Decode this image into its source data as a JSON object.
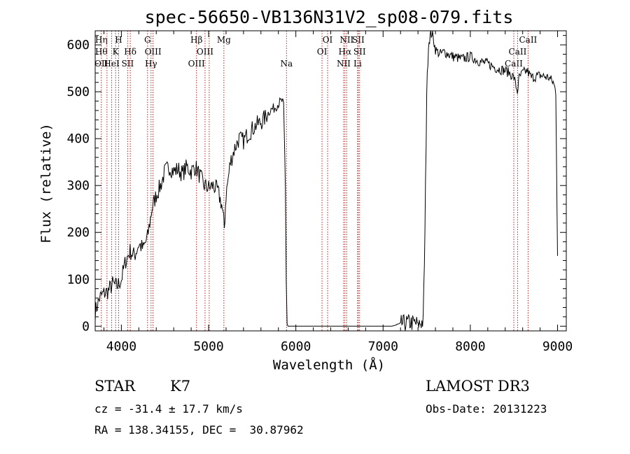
{
  "chart_data": {
    "type": "line",
    "title": "spec-56650-VB136N31V2_sp08-079.fits",
    "xlabel": "Wavelength (Å)",
    "ylabel": "Flux (relative)",
    "xlim": [
      3700,
      9100
    ],
    "ylim": [
      -10,
      630
    ],
    "xticks": [
      4000,
      5000,
      6000,
      7000,
      8000,
      9000
    ],
    "yticks": [
      0,
      100,
      200,
      300,
      400,
      500,
      600
    ],
    "series": [
      {
        "name": "flux",
        "x": [
          3700,
          3750,
          3800,
          3850,
          3900,
          3950,
          4000,
          4050,
          4100,
          4150,
          4200,
          4250,
          4300,
          4350,
          4400,
          4450,
          4500,
          4550,
          4600,
          4650,
          4700,
          4750,
          4800,
          4850,
          4900,
          4950,
          5000,
          5050,
          5100,
          5150,
          5180,
          5200,
          5250,
          5300,
          5350,
          5400,
          5450,
          5500,
          5550,
          5600,
          5650,
          5700,
          5750,
          5800,
          5840,
          5860,
          5880,
          5890,
          5900,
          5910,
          5950,
          6100,
          6300,
          6500,
          6700,
          6900,
          7100,
          7200,
          7300,
          7400,
          7460,
          7480,
          7500,
          7520,
          7540,
          7560,
          7580,
          7600,
          7650,
          7700,
          7800,
          7900,
          8000,
          8100,
          8200,
          8300,
          8400,
          8450,
          8500,
          8540,
          8560,
          8600,
          8650,
          8700,
          8800,
          8900,
          8950,
          8980,
          9000
        ],
        "y": [
          30,
          60,
          70,
          75,
          90,
          85,
          100,
          140,
          160,
          150,
          175,
          165,
          190,
          250,
          280,
          300,
          330,
          340,
          330,
          335,
          325,
          340,
          330,
          340,
          320,
          300,
          295,
          300,
          290,
          260,
          210,
          280,
          350,
          380,
          400,
          395,
          410,
          420,
          430,
          435,
          445,
          460,
          465,
          475,
          480,
          470,
          300,
          100,
          5,
          0,
          0,
          0,
          0,
          0,
          0,
          0,
          0,
          5,
          8,
          5,
          10,
          200,
          500,
          600,
          620,
          625,
          610,
          590,
          580,
          585,
          575,
          570,
          575,
          565,
          560,
          550,
          545,
          540,
          530,
          500,
          530,
          540,
          545,
          530,
          535,
          530,
          520,
          500,
          150
        ]
      }
    ],
    "line_markers": [
      {
        "wl": 3770,
        "rows": [
          "Hη",
          "Hθ",
          "OII"
        ]
      },
      {
        "wl": 3835,
        "rows": [
          ""
        ]
      },
      {
        "wl": 3889,
        "rows": [
          "",
          "",
          "HeI"
        ]
      },
      {
        "wl": 3934,
        "rows": [
          "",
          "K",
          ""
        ]
      },
      {
        "wl": 3969,
        "rows": [
          "H",
          "",
          ""
        ]
      },
      {
        "wl": 4072,
        "rows": [
          "",
          "",
          "SII"
        ]
      },
      {
        "wl": 4102,
        "rows": [
          "",
          "Hδ",
          ""
        ]
      },
      {
        "wl": 4300,
        "rows": [
          "G",
          "",
          ""
        ]
      },
      {
        "wl": 4340,
        "rows": [
          "",
          "",
          "Hγ"
        ]
      },
      {
        "wl": 4363,
        "rows": [
          "",
          "OIII",
          ""
        ]
      },
      {
        "wl": 4861,
        "rows": [
          "Hβ",
          "",
          "OIII"
        ]
      },
      {
        "wl": 4959,
        "rows": [
          "",
          "OIII",
          ""
        ]
      },
      {
        "wl": 5007,
        "rows": [
          ""
        ]
      },
      {
        "wl": 5175,
        "rows": [
          "Mg",
          "",
          ""
        ]
      },
      {
        "wl": 5893,
        "rows": [
          "",
          "",
          "Na"
        ]
      },
      {
        "wl": 6300,
        "rows": [
          "",
          "OI",
          ""
        ]
      },
      {
        "wl": 6364,
        "rows": [
          "OI",
          "",
          ""
        ]
      },
      {
        "wl": 6548,
        "rows": [
          "",
          "",
          "NII"
        ]
      },
      {
        "wl": 6563,
        "rows": [
          "",
          "Hα",
          ""
        ]
      },
      {
        "wl": 6583,
        "rows": [
          "NII",
          "",
          ""
        ]
      },
      {
        "wl": 6708,
        "rows": [
          "",
          "",
          "Li"
        ]
      },
      {
        "wl": 6716,
        "rows": [
          "SII",
          "",
          ""
        ]
      },
      {
        "wl": 6731,
        "rows": [
          "",
          "SII",
          ""
        ]
      },
      {
        "wl": 8498,
        "rows": [
          "",
          "",
          "CaII"
        ]
      },
      {
        "wl": 8542,
        "rows": [
          "",
          "CaII",
          ""
        ]
      },
      {
        "wl": 8662,
        "rows": [
          "CaII",
          "",
          ""
        ]
      }
    ]
  },
  "info": {
    "class_label": "STAR",
    "subclass": "K7",
    "survey": "LAMOST DR3",
    "cz": "cz = -31.4 ± 17.7 km/s",
    "obs_date": "Obs-Date: 20131223",
    "coords": "RA = 138.34155, DEC =  30.87962"
  }
}
